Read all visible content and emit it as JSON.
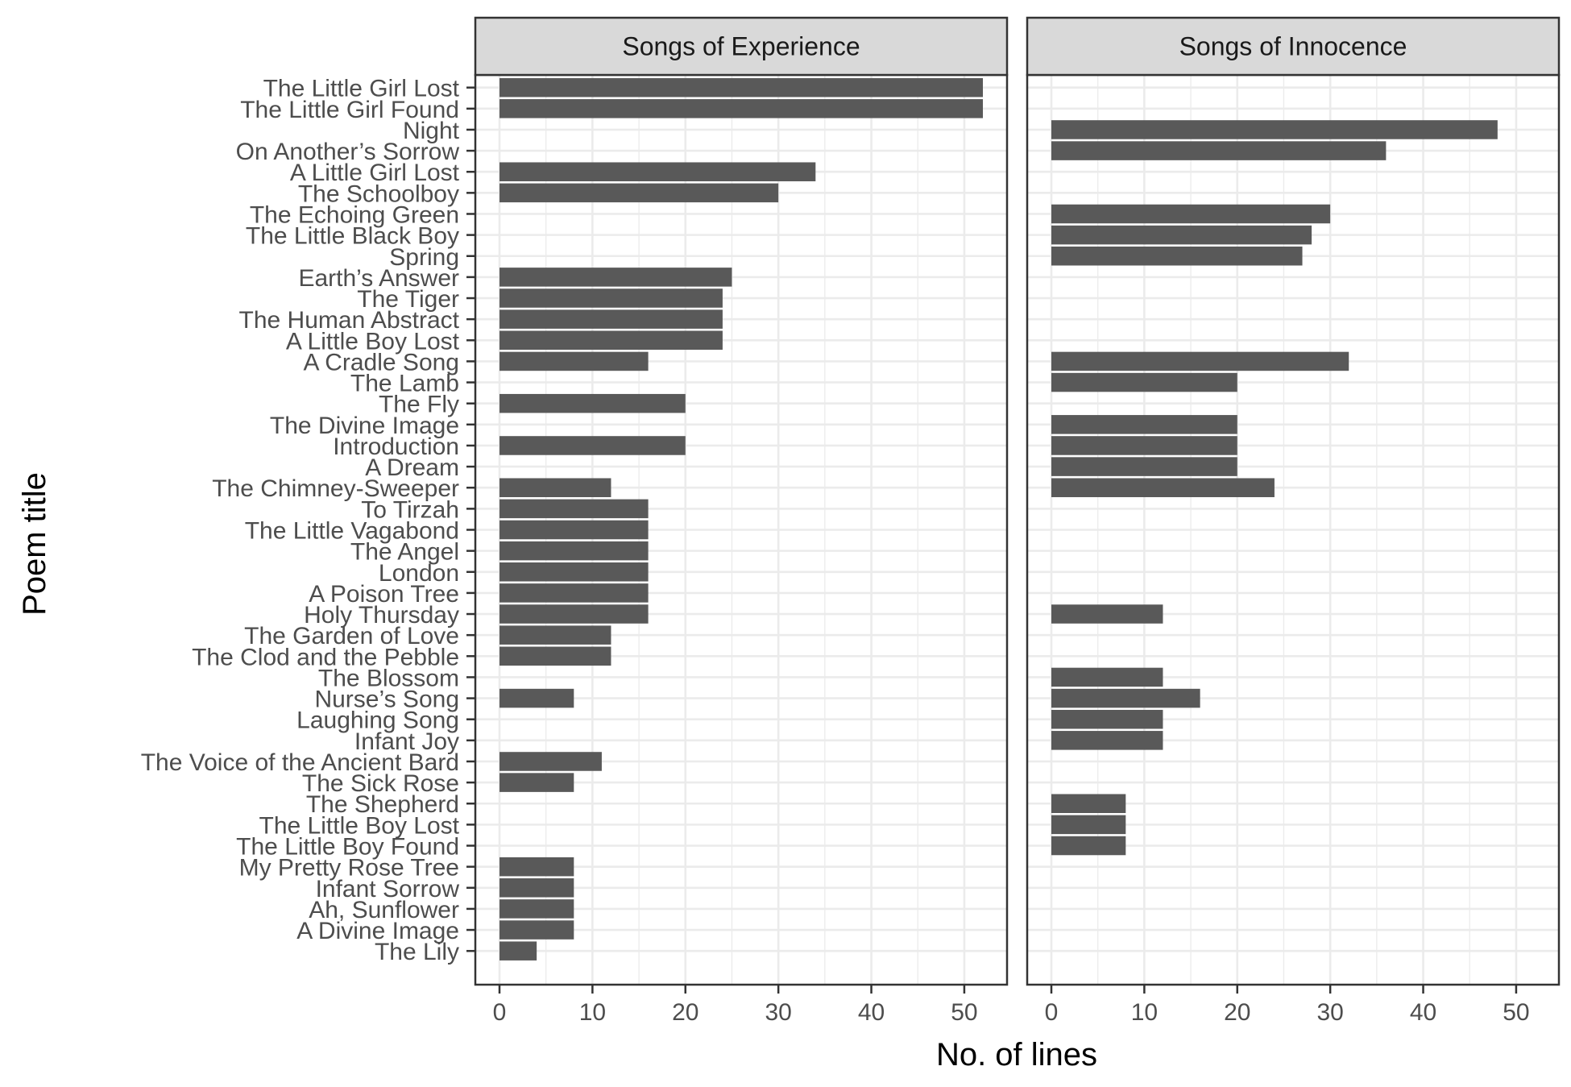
{
  "chart_data": {
    "type": "bar",
    "orientation": "horizontal",
    "xlabel": "No. of lines",
    "ylabel": "Poem title",
    "xlim": [
      -2.6,
      54.6
    ],
    "x_ticks": [
      0,
      10,
      20,
      30,
      40,
      50
    ],
    "grid": true,
    "colors": {
      "bar": "#595959",
      "strip_fill": "#d9d9d9",
      "grid": "#ebebeb",
      "border": "#333333"
    },
    "categories": [
      "The Little Girl Lost",
      "The Little Girl Found",
      "Night",
      "On Another’s Sorrow",
      "A Little Girl Lost",
      "The Schoolboy",
      "The Echoing Green",
      "The Little Black Boy",
      "Spring",
      "Earth’s Answer",
      "The Tiger",
      "The Human Abstract",
      "A Little Boy Lost",
      "A Cradle Song",
      "The Lamb",
      "The Fly",
      "The Divine Image",
      "Introduction",
      "A Dream",
      "The Chimney-Sweeper",
      "To Tirzah",
      "The Little Vagabond",
      "The Angel",
      "London",
      "A Poison Tree",
      "Holy Thursday",
      "The Garden of Love",
      "The Clod and the Pebble",
      "The Blossom",
      "Nurse’s Song",
      "Laughing Song",
      "Infant Joy",
      "The Voice of the Ancient Bard",
      "The Sick Rose",
      "The Shepherd",
      "The Little Boy Lost",
      "The Little Boy Found",
      "My Pretty Rose Tree",
      "Infant Sorrow",
      "Ah, Sunflower",
      "A Divine Image",
      "The Lily"
    ],
    "panels": [
      {
        "name": "Songs of Experience",
        "values": [
          52,
          52,
          null,
          null,
          34,
          30,
          null,
          null,
          null,
          25,
          24,
          24,
          24,
          16,
          null,
          20,
          null,
          20,
          null,
          12,
          16,
          16,
          16,
          16,
          16,
          16,
          12,
          12,
          null,
          8,
          null,
          null,
          11,
          8,
          null,
          null,
          null,
          8,
          8,
          8,
          8,
          4
        ]
      },
      {
        "name": "Songs of Innocence",
        "values": [
          null,
          null,
          48,
          36,
          null,
          null,
          30,
          28,
          27,
          null,
          null,
          null,
          null,
          32,
          20,
          null,
          20,
          20,
          20,
          24,
          null,
          null,
          null,
          null,
          null,
          12,
          null,
          null,
          12,
          16,
          12,
          12,
          null,
          null,
          8,
          8,
          8,
          null,
          null,
          null,
          null,
          null
        ]
      }
    ]
  }
}
